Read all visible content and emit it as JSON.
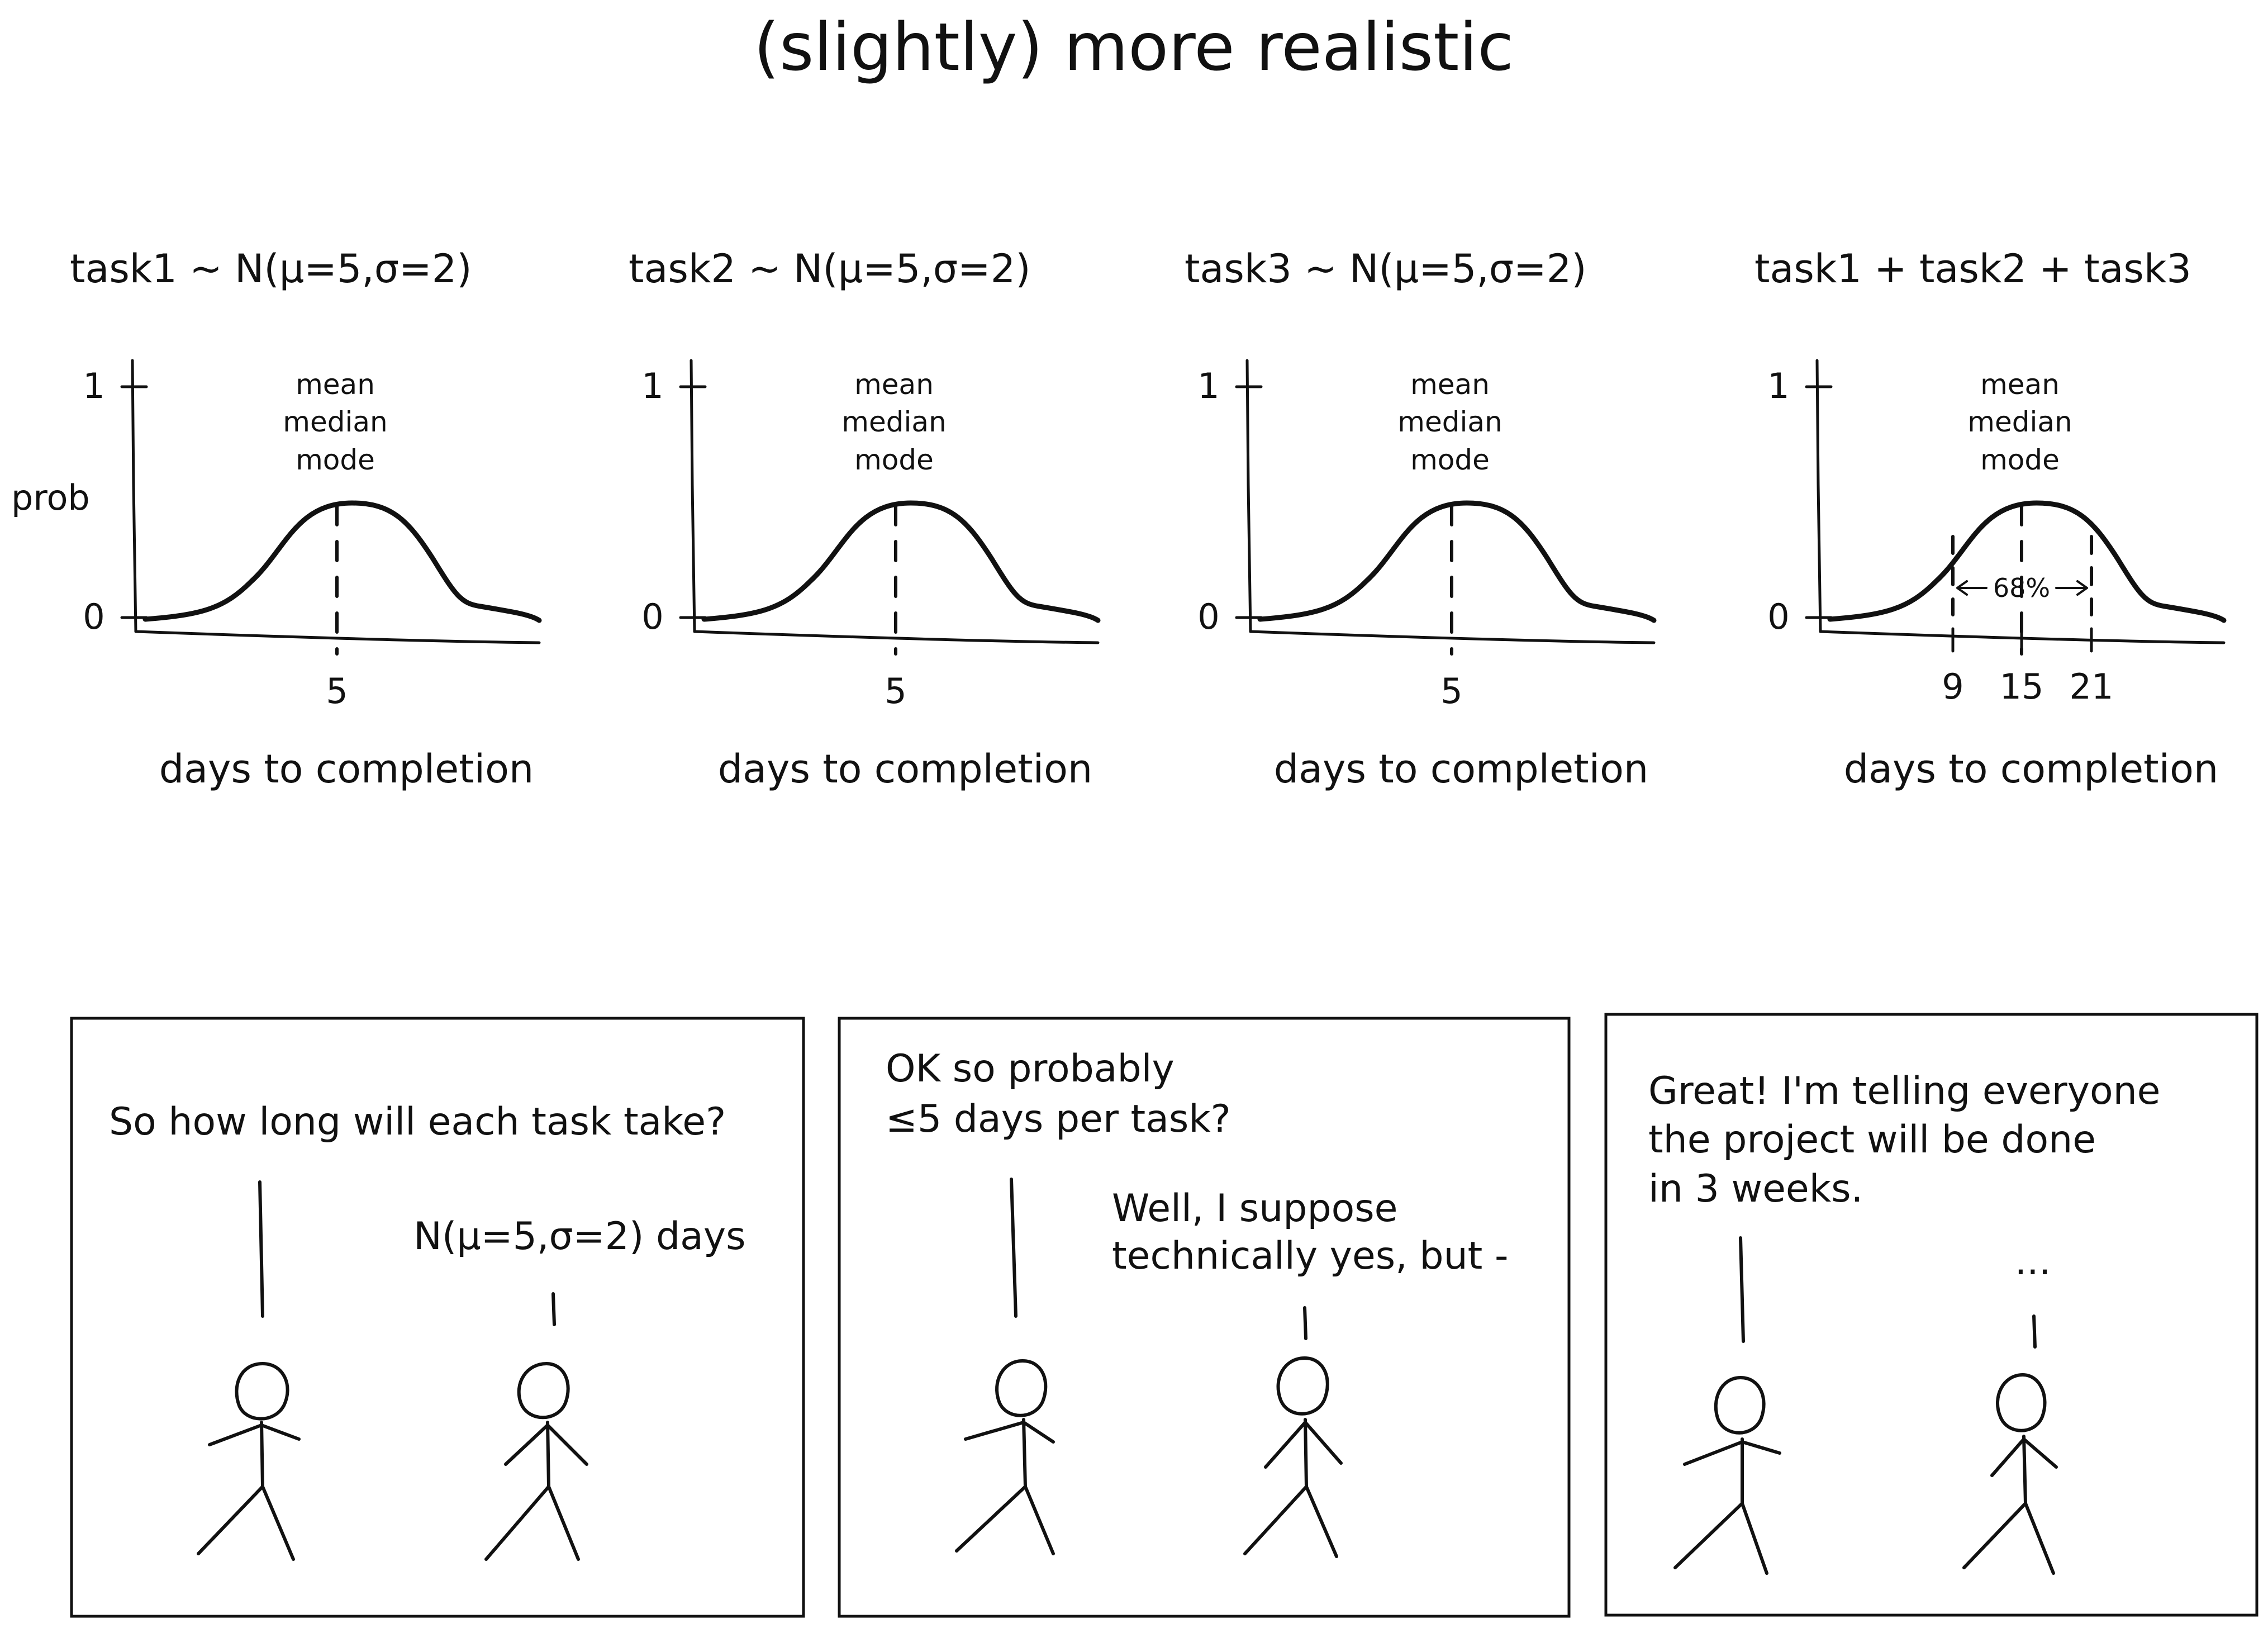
{
  "title": "(slightly) more realistic",
  "chart_data": [
    {
      "type": "line",
      "title": "task1 ~ N(μ=5,σ=2)",
      "xlabel": "days to completion",
      "ylabel": "prob",
      "y_ticks": [
        "0",
        "1"
      ],
      "x_ticks": [
        "5"
      ],
      "mean": 5,
      "sd": 2,
      "annotation": [
        "mean",
        "median",
        "mode"
      ]
    },
    {
      "type": "line",
      "title": "task2 ~ N(μ=5,σ=2)",
      "xlabel": "days to completion",
      "ylabel": "",
      "y_ticks": [
        "0",
        "1"
      ],
      "x_ticks": [
        "5"
      ],
      "mean": 5,
      "sd": 2,
      "annotation": [
        "mean",
        "median",
        "mode"
      ]
    },
    {
      "type": "line",
      "title": "task3 ~ N(μ=5,σ=2)",
      "xlabel": "days to completion",
      "ylabel": "",
      "y_ticks": [
        "0",
        "1"
      ],
      "x_ticks": [
        "5"
      ],
      "mean": 5,
      "sd": 2,
      "annotation": [
        "mean",
        "median",
        "mode"
      ]
    },
    {
      "type": "line",
      "title": "task1 + task2 + task3",
      "xlabel": "days to completion",
      "ylabel": "",
      "y_ticks": [
        "0",
        "1"
      ],
      "x_ticks": [
        "9",
        "15",
        "21"
      ],
      "mean": 15,
      "interval": [
        9,
        21
      ],
      "interval_label": "68%",
      "annotation": [
        "mean",
        "median",
        "mode"
      ]
    }
  ],
  "comic": {
    "panels": [
      {
        "speech": [
          "So how long will each task take?",
          "N(μ=5,σ=2) days"
        ]
      },
      {
        "speech": [
          "OK so probably",
          "≤5 days per task?",
          "Well, I suppose",
          "technically yes, but -"
        ]
      },
      {
        "speech": [
          "Great! I'm telling everyone",
          "the project will be done",
          "in 3 weeks.",
          "..."
        ]
      }
    ]
  }
}
